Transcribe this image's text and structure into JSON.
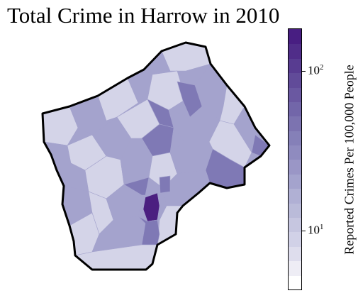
{
  "title": "Total Crime in Harrow in 2010",
  "colorbar": {
    "label": "Reported Crimes Per 100,000 People",
    "scale": "log",
    "range": [
      4,
      200
    ],
    "ticks": [
      {
        "base": "10",
        "exp": "1",
        "value": 10
      },
      {
        "base": "10",
        "exp": "2",
        "value": 100
      }
    ],
    "colors": [
      "#ffffff",
      "#eeedf5",
      "#dedded",
      "#d1d1e7",
      "#c6c6e0",
      "#babbd9",
      "#b0b0d4",
      "#a4a3cd",
      "#9a96c6",
      "#8f8bbf",
      "#8580b8",
      "#7c73b0",
      "#7266a9",
      "#6a58a1",
      "#614b99",
      "#583c91",
      "#502d89",
      "#481e82"
    ]
  },
  "map": {
    "region": "Harrow",
    "colors": {
      "border": "#000000",
      "low": "#d4d4e8",
      "mid": "#a4a3cd",
      "high": "#7f79b5",
      "max": "#4b1f80",
      "empty": "#ffffff"
    }
  }
}
